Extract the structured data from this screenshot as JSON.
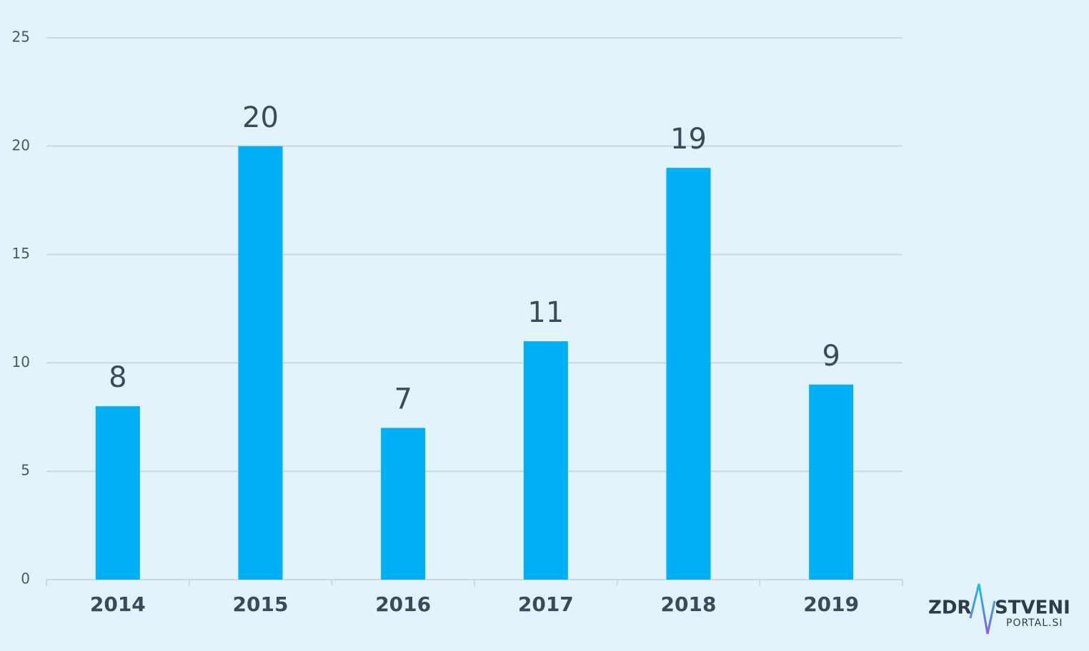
{
  "chart_data": {
    "type": "bar",
    "categories": [
      "2014",
      "2015",
      "2016",
      "2017",
      "2018",
      "2019"
    ],
    "values": [
      8,
      20,
      7,
      11,
      19,
      9
    ],
    "color": "#00b0f6",
    "ylim": [
      0,
      25
    ],
    "yticks": [
      0,
      5,
      10,
      15,
      20,
      25
    ],
    "grid": true
  },
  "logo": {
    "left": "ZDR",
    "right": "STVENI",
    "sub": "PORTAL.SI"
  }
}
